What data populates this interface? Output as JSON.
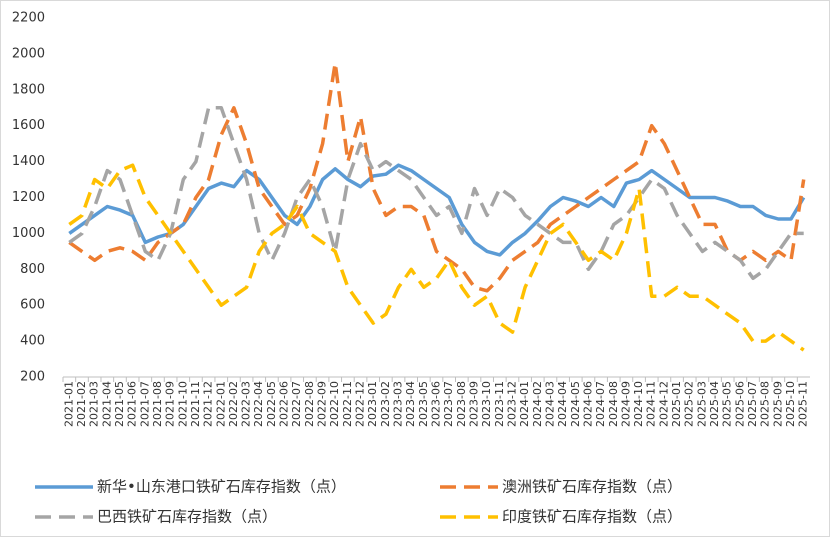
{
  "chart_data": {
    "type": "line",
    "categories": [
      "2021-01",
      "2021-02",
      "2021-03",
      "2021-04",
      "2021-05",
      "2021-06",
      "2021-07",
      "2021-08",
      "2021-09",
      "2021-10",
      "2021-11",
      "2021-12",
      "2022-01",
      "2022-02",
      "2022-03",
      "2022-04",
      "2022-05",
      "2022-06",
      "2022-07",
      "2022-08",
      "2022-09",
      "2022-10",
      "2022-11",
      "2022-12",
      "2023-01",
      "2023-02",
      "2023-03",
      "2023-04",
      "2023-05",
      "2023-06",
      "2023-07",
      "2023-08",
      "2023-09",
      "2023-10",
      "2023-11",
      "2023-12",
      "2024-01",
      "2024-02",
      "2024-03",
      "2024-04",
      "2024-05",
      "2024-06",
      "2024-07",
      "2024-08",
      "2024-09",
      "2024-10",
      "2024-11",
      "2024-12",
      "2025-01",
      "2025-02",
      "2025-03",
      "2025-04",
      "2025-05",
      "2025-06",
      "2025-07",
      "2025-08",
      "2025-09",
      "2025-10",
      "2025-11"
    ],
    "series": [
      {
        "name": "新华•山东港口铁矿石库存指数（点）",
        "color": "#5b9bd5",
        "dash": "none",
        "values": [
          1000,
          1050,
          1100,
          1150,
          1130,
          1100,
          950,
          980,
          1000,
          1050,
          1150,
          1250,
          1280,
          1260,
          1350,
          1300,
          1200,
          1100,
          1050,
          1150,
          1300,
          1360,
          1300,
          1260,
          1320,
          1330,
          1380,
          1350,
          1300,
          1250,
          1200,
          1050,
          950,
          900,
          880,
          950,
          1000,
          1070,
          1150,
          1200,
          1180,
          1150,
          1200,
          1150,
          1280,
          1300,
          1350,
          1300,
          1250,
          1200,
          1200,
          1200,
          1180,
          1150,
          1150,
          1100,
          1080,
          1080,
          1200
        ]
      },
      {
        "name": "澳洲铁矿石库存指数（点）",
        "color": "#ed7d31",
        "dash": "16 8",
        "values": [
          950,
          900,
          850,
          900,
          920,
          900,
          850,
          950,
          1000,
          1050,
          1200,
          1300,
          1550,
          1700,
          1500,
          1250,
          1150,
          1050,
          1100,
          1250,
          1500,
          1950,
          1400,
          1650,
          1250,
          1100,
          1150,
          1150,
          1100,
          900,
          850,
          800,
          700,
          680,
          750,
          850,
          900,
          950,
          1050,
          1100,
          1150,
          1200,
          1250,
          1300,
          1350,
          1400,
          1600,
          1500,
          1350,
          1200,
          1050,
          1050,
          900,
          850,
          900,
          850,
          900,
          850,
          1300
        ]
      },
      {
        "name": "巴西铁矿石库存指数（点）",
        "color": "#a5a5a5",
        "dash": "16 8",
        "values": [
          950,
          1000,
          1150,
          1350,
          1300,
          1100,
          900,
          850,
          1000,
          1300,
          1400,
          1700,
          1700,
          1500,
          1300,
          1000,
          850,
          1000,
          1200,
          1300,
          1150,
          900,
          1300,
          1500,
          1350,
          1400,
          1350,
          1300,
          1200,
          1100,
          1150,
          1000,
          1250,
          1100,
          1250,
          1200,
          1100,
          1050,
          1000,
          950,
          950,
          800,
          900,
          1050,
          1100,
          1200,
          1300,
          1250,
          1100,
          1000,
          900,
          950,
          900,
          850,
          750,
          800,
          900,
          1000,
          1000
        ]
      },
      {
        "name": "印度铁矿石库存指数（点）",
        "color": "#ffc000",
        "dash": "16 8",
        "values": [
          1050,
          1100,
          1300,
          1250,
          1350,
          1380,
          1200,
          1100,
          1000,
          900,
          800,
          700,
          600,
          650,
          700,
          900,
          1000,
          1050,
          1150,
          1000,
          950,
          900,
          700,
          600,
          500,
          550,
          700,
          800,
          700,
          750,
          850,
          700,
          600,
          650,
          500,
          450,
          700,
          850,
          1000,
          1050,
          950,
          850,
          900,
          850,
          1000,
          1250,
          650,
          650,
          700,
          650,
          650,
          600,
          550,
          500,
          400,
          400,
          450,
          400,
          350
        ]
      }
    ],
    "ylim": [
      200,
      2200
    ],
    "yticks": [
      200,
      400,
      600,
      800,
      1000,
      1200,
      1400,
      1600,
      1800,
      2000,
      2200
    ],
    "grid": false
  }
}
